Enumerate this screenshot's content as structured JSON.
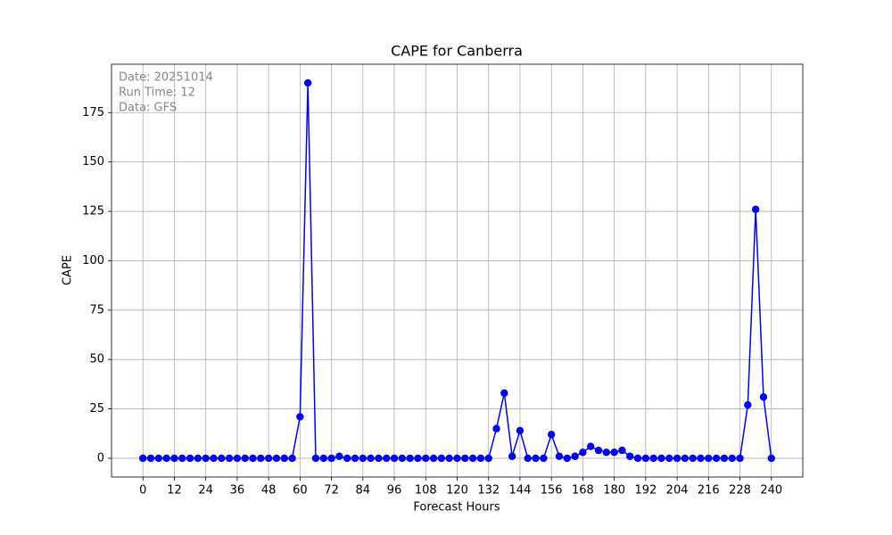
{
  "chart_data": {
    "type": "line",
    "title": "CAPE for Canberra",
    "xlabel": "Forecast Hours",
    "ylabel": "CAPE",
    "annotations": [
      "Date: 20251014",
      "Run Time: 12",
      "Data: GFS"
    ],
    "x": [
      0,
      3,
      6,
      9,
      12,
      15,
      18,
      21,
      24,
      27,
      30,
      33,
      36,
      39,
      42,
      45,
      48,
      51,
      54,
      57,
      60,
      63,
      66,
      69,
      72,
      75,
      78,
      81,
      84,
      87,
      90,
      93,
      96,
      99,
      102,
      105,
      108,
      111,
      114,
      117,
      120,
      123,
      126,
      129,
      132,
      135,
      138,
      141,
      144,
      147,
      150,
      153,
      156,
      159,
      162,
      165,
      168,
      171,
      174,
      177,
      180,
      183,
      186,
      189,
      192,
      195,
      198,
      201,
      204,
      207,
      210,
      213,
      216,
      219,
      222,
      225,
      228,
      231,
      234,
      237,
      240
    ],
    "series": [
      {
        "name": "CAPE",
        "color": "#0000ff",
        "values": [
          0,
          0,
          0,
          0,
          0,
          0,
          0,
          0,
          0,
          0,
          0,
          0,
          0,
          0,
          0,
          0,
          0,
          0,
          0,
          0,
          21,
          190,
          0,
          0,
          0,
          1,
          0,
          0,
          0,
          0,
          0,
          0,
          0,
          0,
          0,
          0,
          0,
          0,
          0,
          0,
          0,
          0,
          0,
          0,
          0,
          15,
          33,
          1,
          14,
          0,
          0,
          0,
          12,
          1,
          0,
          1,
          3,
          6,
          4,
          3,
          3,
          4,
          1,
          0,
          0,
          0,
          0,
          0,
          0,
          0,
          0,
          0,
          0,
          0,
          0,
          0,
          0,
          27,
          126,
          31,
          0
        ]
      }
    ],
    "xlim": [
      -12,
      252
    ],
    "ylim": [
      -9.5,
      199.5
    ],
    "xticks": [
      0,
      12,
      24,
      36,
      48,
      60,
      72,
      84,
      96,
      108,
      120,
      132,
      144,
      156,
      168,
      180,
      192,
      204,
      216,
      228,
      240
    ],
    "yticks": [
      0,
      25,
      50,
      75,
      100,
      125,
      150,
      175
    ],
    "grid": true
  }
}
